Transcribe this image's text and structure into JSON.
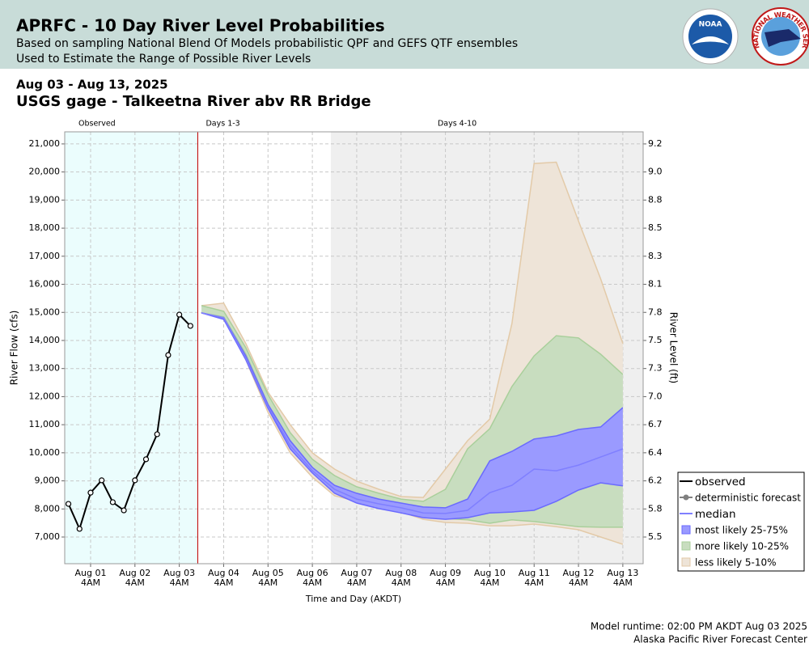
{
  "header": {
    "title": "APRFC - 10 Day River Level Probabilities",
    "subtitle_1": "Based on sampling National Blend Of Models probabilistic QPF and GEFS QTF ensembles",
    "subtitle_2": "Used to Estimate the Range of Possible River Levels",
    "logo_noaa": "NOAA",
    "logo_nws": "NATIONAL WEATHER SERVICE"
  },
  "date_range": "Aug 03 - Aug 13, 2025",
  "station": "USGS gage - Talkeetna River abv RR Bridge",
  "footer": {
    "runtime": "Model runtime: 02:00 PM AKDT Aug 03 2025",
    "center": "Alaska Pacific River Forecast Center"
  },
  "chart_data": {
    "type": "line",
    "x_label": "Time and Day (AKDT)",
    "y_label": "River Flow (cfs)",
    "y2_label": "River Level (ft)",
    "xlim": [
      "2025-07-31T14:00",
      "2025-08-13T15:00"
    ],
    "xticks": [
      {
        "value": "2025-08-01T04:00",
        "label": "Aug 01",
        "sublabel": "4AM"
      },
      {
        "value": "2025-08-02T04:00",
        "label": "Aug 02",
        "sublabel": "4AM"
      },
      {
        "value": "2025-08-03T04:00",
        "label": "Aug 03",
        "sublabel": "4AM"
      },
      {
        "value": "2025-08-04T04:00",
        "label": "Aug 04",
        "sublabel": "4AM"
      },
      {
        "value": "2025-08-05T04:00",
        "label": "Aug 05",
        "sublabel": "4AM"
      },
      {
        "value": "2025-08-06T04:00",
        "label": "Aug 06",
        "sublabel": "4AM"
      },
      {
        "value": "2025-08-07T04:00",
        "label": "Aug 07",
        "sublabel": "4AM"
      },
      {
        "value": "2025-08-08T04:00",
        "label": "Aug 08",
        "sublabel": "4AM"
      },
      {
        "value": "2025-08-09T04:00",
        "label": "Aug 09",
        "sublabel": "4AM"
      },
      {
        "value": "2025-08-10T04:00",
        "label": "Aug 10",
        "sublabel": "4AM"
      },
      {
        "value": "2025-08-11T04:00",
        "label": "Aug 11",
        "sublabel": "4AM"
      },
      {
        "value": "2025-08-12T04:00",
        "label": "Aug 12",
        "sublabel": "4AM"
      },
      {
        "value": "2025-08-13T04:00",
        "label": "Aug 13",
        "sublabel": "4AM"
      }
    ],
    "ylim": [
      6050,
      21430
    ],
    "yticks": [
      {
        "value": 7000,
        "label": "7,000"
      },
      {
        "value": 8000,
        "label": "8,000"
      },
      {
        "value": 9000,
        "label": "9,000"
      },
      {
        "value": 10000,
        "label": "10,000"
      },
      {
        "value": 11000,
        "label": "11,000"
      },
      {
        "value": 12000,
        "label": "12,000"
      },
      {
        "value": 13000,
        "label": "13,000"
      },
      {
        "value": 14000,
        "label": "14,000"
      },
      {
        "value": 15000,
        "label": "15,000"
      },
      {
        "value": 16000,
        "label": "16,000"
      },
      {
        "value": 17000,
        "label": "17,000"
      },
      {
        "value": 18000,
        "label": "18,000"
      },
      {
        "value": 19000,
        "label": "19,000"
      },
      {
        "value": 20000,
        "label": "20,000"
      },
      {
        "value": 21000,
        "label": "21,000"
      }
    ],
    "y2ticks": [
      5.5,
      5.8,
      6.2,
      6.4,
      6.7,
      {
        "value": 7,
        "label": "7.0"
      },
      7.3,
      7.5,
      7.8,
      8.1,
      8.3,
      8.5,
      8.8,
      {
        "value": 9,
        "label": "9.0"
      },
      9.2
    ],
    "grid": true,
    "legend": "lower right",
    "regions": [
      {
        "label": "Observed",
        "start": "2025-07-31T14:00",
        "end": "2025-08-03T14:00",
        "color": "#ebfdfd"
      },
      {
        "label": "Days 1-3",
        "start": "2025-08-03T14:00",
        "end": "2025-08-06T14:00",
        "color": "#ffffff"
      },
      {
        "label": "Days 4-10",
        "start": "2025-08-06T14:00",
        "end": "2025-08-13T15:00",
        "color": "#efefef"
      }
    ],
    "divider_color": "#c00000",
    "series": [
      {
        "name": "observed",
        "kind": "line",
        "marker": "circle",
        "color": "#000000",
        "x": [
          "2025-07-31T16:00",
          "2025-07-31T22:00",
          "2025-08-01T04:00",
          "2025-08-01T10:00",
          "2025-08-01T16:00",
          "2025-08-01T22:00",
          "2025-08-02T04:00",
          "2025-08-02T10:00",
          "2025-08-02T16:00",
          "2025-08-02T22:00",
          "2025-08-03T04:00",
          "2025-08-03T10:00"
        ],
        "values": [
          8180,
          7290,
          8580,
          9020,
          8240,
          7950,
          9020,
          9770,
          10660,
          13480,
          14920,
          14520
        ]
      },
      {
        "name": "deterministic forecast",
        "kind": "line",
        "marker": "dot",
        "color": "#808080"
      },
      {
        "name": "median",
        "kind": "line",
        "color": "#7f7fff",
        "x": [
          "2025-08-03T16:00",
          "2025-08-04T04:00",
          "2025-08-04T16:00",
          "2025-08-05T04:00",
          "2025-08-05T16:00",
          "2025-08-06T04:00",
          "2025-08-06T16:00",
          "2025-08-07T04:00",
          "2025-08-07T16:00",
          "2025-08-08T04:00",
          "2025-08-08T16:00",
          "2025-08-09T04:00",
          "2025-08-09T16:00",
          "2025-08-10T04:00",
          "2025-08-10T16:00",
          "2025-08-11T04:00",
          "2025-08-11T16:00",
          "2025-08-12T04:00",
          "2025-08-12T16:00",
          "2025-08-13T04:00"
        ],
        "values": [
          14980,
          14810,
          13370,
          11640,
          10260,
          9360,
          8700,
          8350,
          8180,
          8040,
          7860,
          7840,
          7950,
          8580,
          8840,
          9420,
          9360,
          9560,
          9850,
          10140
        ]
      },
      {
        "name": "most likely 25-75%",
        "kind": "band",
        "color": "#9a9aff",
        "edge_color": "#6a6aff",
        "x": [
          "2025-08-03T16:00",
          "2025-08-04T04:00",
          "2025-08-04T16:00",
          "2025-08-05T04:00",
          "2025-08-05T16:00",
          "2025-08-06T04:00",
          "2025-08-06T16:00",
          "2025-08-07T04:00",
          "2025-08-07T16:00",
          "2025-08-08T04:00",
          "2025-08-08T16:00",
          "2025-08-09T04:00",
          "2025-08-09T16:00",
          "2025-08-10T04:00",
          "2025-08-10T16:00",
          "2025-08-11T04:00",
          "2025-08-11T16:00",
          "2025-08-12T04:00",
          "2025-08-12T16:00",
          "2025-08-13T04:00"
        ],
        "upper": [
          14980,
          14810,
          13450,
          11720,
          10430,
          9480,
          8840,
          8560,
          8350,
          8210,
          8070,
          8040,
          8350,
          9710,
          10050,
          10490,
          10600,
          10830,
          10920,
          11610
        ],
        "lower": [
          14980,
          14750,
          13310,
          11580,
          10140,
          9280,
          8560,
          8210,
          8010,
          7860,
          7690,
          7630,
          7690,
          7860,
          7890,
          7950,
          8270,
          8670,
          8930,
          8820
        ]
      },
      {
        "name": "more likely 10-25%",
        "kind": "band",
        "color": "#c8ddbf",
        "edge_color": "#a9cf9b",
        "x": [
          "2025-08-03T16:00",
          "2025-08-04T04:00",
          "2025-08-04T16:00",
          "2025-08-05T04:00",
          "2025-08-05T16:00",
          "2025-08-06T04:00",
          "2025-08-06T16:00",
          "2025-08-07T04:00",
          "2025-08-07T16:00",
          "2025-08-08T04:00",
          "2025-08-08T16:00",
          "2025-08-09T04:00",
          "2025-08-09T16:00",
          "2025-08-10T04:00",
          "2025-08-10T16:00",
          "2025-08-11T04:00",
          "2025-08-11T16:00",
          "2025-08-12T04:00",
          "2025-08-12T16:00",
          "2025-08-13T04:00"
        ],
        "upper": [
          15240,
          15040,
          13740,
          12070,
          10720,
          9770,
          9190,
          8790,
          8560,
          8350,
          8270,
          8700,
          10140,
          10860,
          12360,
          13450,
          14170,
          14090,
          13510,
          12790
        ],
        "lower": [
          14980,
          14840,
          13510,
          11720,
          10230,
          9330,
          8610,
          8350,
          8120,
          7920,
          7750,
          7660,
          7610,
          7490,
          7610,
          7550,
          7460,
          7370,
          7350,
          7350
        ]
      },
      {
        "name": "less likely 5-10%",
        "kind": "band",
        "color": "#eee4d8",
        "edge_color": "#e3caa8",
        "x": [
          "2025-08-03T16:00",
          "2025-08-04T04:00",
          "2025-08-04T16:00",
          "2025-08-05T04:00",
          "2025-08-05T16:00",
          "2025-08-06T04:00",
          "2025-08-06T16:00",
          "2025-08-07T04:00",
          "2025-08-07T16:00",
          "2025-08-08T04:00",
          "2025-08-08T16:00",
          "2025-08-09T04:00",
          "2025-08-09T16:00",
          "2025-08-10T04:00",
          "2025-08-10T16:00",
          "2025-08-11T04:00",
          "2025-08-11T16:00",
          "2025-08-12T04:00",
          "2025-08-12T16:00",
          "2025-08-13T04:00"
        ],
        "upper": [
          15240,
          15330,
          13890,
          12160,
          11000,
          10000,
          9420,
          8990,
          8700,
          8440,
          8410,
          9420,
          10430,
          11200,
          14600,
          20300,
          20350,
          18260,
          16190,
          13890
        ],
        "lower": [
          14980,
          14810,
          13310,
          11440,
          10000,
          9130,
          8470,
          8270,
          8070,
          7890,
          7630,
          7520,
          7490,
          7400,
          7400,
          7460,
          7370,
          7260,
          7000,
          6740
        ]
      }
    ]
  }
}
